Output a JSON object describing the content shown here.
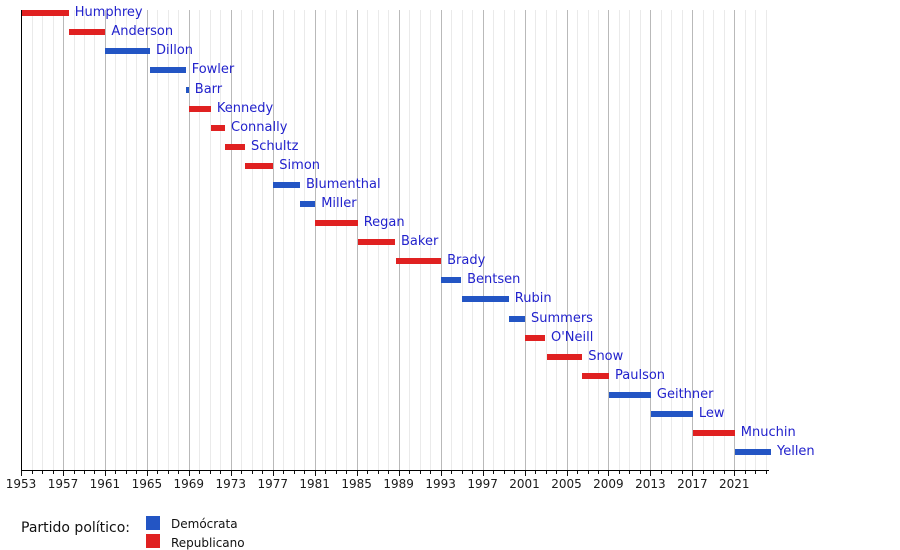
{
  "chart_data": {
    "type": "bar",
    "subtype": "gantt-timeline",
    "title": "",
    "x_axis": {
      "start_year": 1953,
      "end_year": 2024.5,
      "major_tick_labels": [
        "1953",
        "1957",
        "1961",
        "1965",
        "1969",
        "1973",
        "1977",
        "1981",
        "1985",
        "1989",
        "1993",
        "1997",
        "2001",
        "2005",
        "2009",
        "2013",
        "2017",
        "2021"
      ],
      "minor_tick_interval_years": 1,
      "grid": true
    },
    "parties": {
      "D": {
        "label": "Demócrata",
        "color": "#2355C4"
      },
      "R": {
        "label": "Republicano",
        "color": "#E02121"
      }
    },
    "series": [
      {
        "name": "Humphrey",
        "party": "R",
        "start": 1953.05,
        "end": 1957.55
      },
      {
        "name": "Anderson",
        "party": "R",
        "start": 1957.55,
        "end": 1961.05
      },
      {
        "name": "Dillon",
        "party": "D",
        "start": 1961.05,
        "end": 1965.3
      },
      {
        "name": "Fowler",
        "party": "D",
        "start": 1965.3,
        "end": 1968.7
      },
      {
        "name": "Barr",
        "party": "D",
        "start": 1968.7,
        "end": 1969.0
      },
      {
        "name": "Kennedy",
        "party": "R",
        "start": 1969.05,
        "end": 1971.1
      },
      {
        "name": "Connally",
        "party": "R",
        "start": 1971.1,
        "end": 1972.45
      },
      {
        "name": "Schultz",
        "party": "R",
        "start": 1972.45,
        "end": 1974.35
      },
      {
        "name": "Simon",
        "party": "R",
        "start": 1974.35,
        "end": 1977.05
      },
      {
        "name": "Blumenthal",
        "party": "D",
        "start": 1977.05,
        "end": 1979.6
      },
      {
        "name": "Miller",
        "party": "D",
        "start": 1979.6,
        "end": 1981.05
      },
      {
        "name": "Regan",
        "party": "R",
        "start": 1981.05,
        "end": 1985.1
      },
      {
        "name": "Baker",
        "party": "R",
        "start": 1985.1,
        "end": 1988.65
      },
      {
        "name": "Brady",
        "party": "R",
        "start": 1988.7,
        "end": 1993.05
      },
      {
        "name": "Bentsen",
        "party": "D",
        "start": 1993.05,
        "end": 1994.95
      },
      {
        "name": "Rubin",
        "party": "D",
        "start": 1995.05,
        "end": 1999.5
      },
      {
        "name": "Summers",
        "party": "D",
        "start": 1999.5,
        "end": 2001.05
      },
      {
        "name": "O'Neill",
        "party": "R",
        "start": 2001.05,
        "end": 2002.95
      },
      {
        "name": "Snow",
        "party": "R",
        "start": 2003.1,
        "end": 2006.5
      },
      {
        "name": "Paulson",
        "party": "R",
        "start": 2006.5,
        "end": 2009.05
      },
      {
        "name": "Geithner",
        "party": "D",
        "start": 2009.05,
        "end": 2013.05
      },
      {
        "name": "Lew",
        "party": "D",
        "start": 2013.1,
        "end": 2017.05
      },
      {
        "name": "Mnuchin",
        "party": "R",
        "start": 2017.1,
        "end": 2021.05
      },
      {
        "name": "Yellen",
        "party": "D",
        "start": 2021.05,
        "end": 2024.5
      }
    ]
  },
  "legend": {
    "title": "Partido político:",
    "items": [
      {
        "label": "Demócrata",
        "color": "#2355C4"
      },
      {
        "label": "Republicano",
        "color": "#E02121"
      }
    ]
  },
  "colors": {
    "democrat": "#2355C4",
    "republican": "#E02121",
    "bar_label": "#2222CC",
    "axis": "#000000",
    "grid_minor": "#eaeaea",
    "grid_major": "#b9b9b9"
  }
}
